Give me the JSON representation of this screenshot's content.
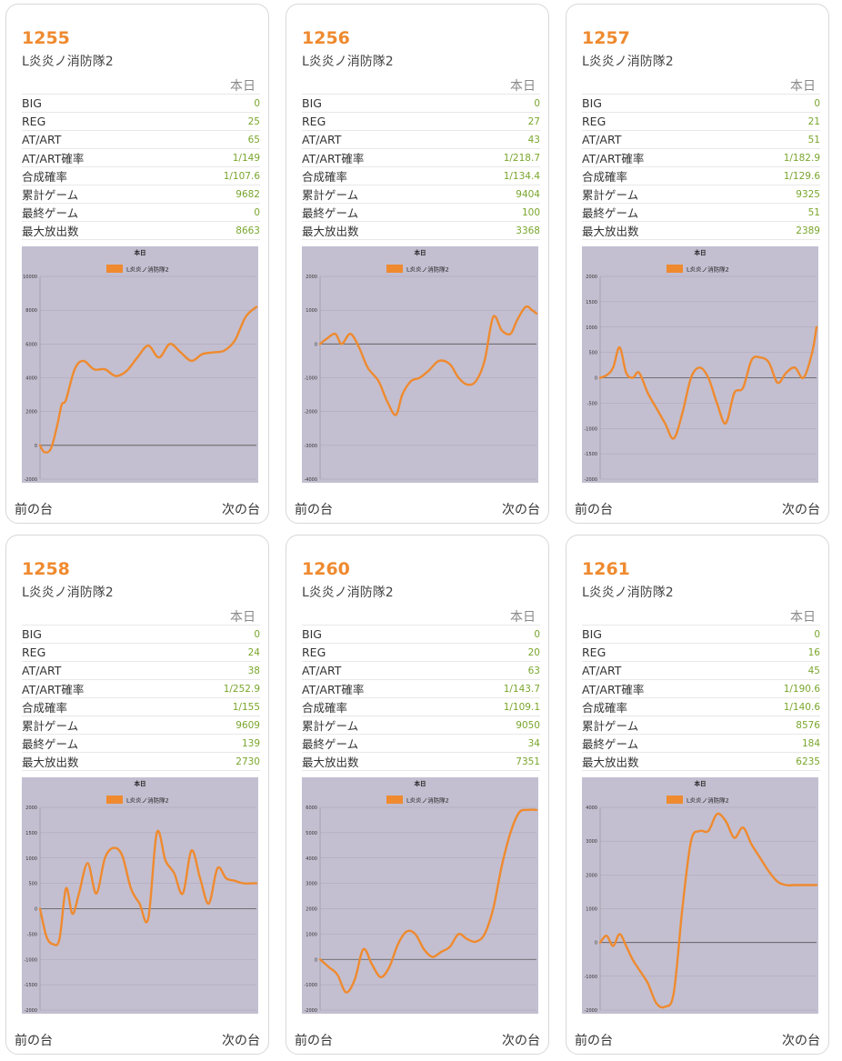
{
  "header_today": "本日",
  "nav": {
    "prev": "前の台",
    "next": "次の台"
  },
  "stat_labels": [
    "BIG",
    "REG",
    "AT/ART",
    "AT/ART確率",
    "合成確率",
    "累計ゲーム",
    "最終ゲーム",
    "最大放出数"
  ],
  "colors": {
    "accent": "#ef8a2f",
    "value_green": "#7aa62c",
    "chart_bg": "#c3bfd0",
    "line": "#ef8a2f"
  },
  "machines": [
    {
      "number": "1255",
      "model": "L炎炎ノ消防隊2",
      "stats": [
        "0",
        "25",
        "65",
        "1/149",
        "1/107.6",
        "9682",
        "0",
        "8663"
      ]
    },
    {
      "number": "1256",
      "model": "L炎炎ノ消防隊2",
      "stats": [
        "0",
        "27",
        "43",
        "1/218.7",
        "1/134.4",
        "9404",
        "100",
        "3368"
      ]
    },
    {
      "number": "1257",
      "model": "L炎炎ノ消防隊2",
      "stats": [
        "0",
        "21",
        "51",
        "1/182.9",
        "1/129.6",
        "9325",
        "51",
        "2389"
      ]
    },
    {
      "number": "1258",
      "model": "L炎炎ノ消防隊2",
      "stats": [
        "0",
        "24",
        "38",
        "1/252.9",
        "1/155",
        "9609",
        "139",
        "2730"
      ]
    },
    {
      "number": "1260",
      "model": "L炎炎ノ消防隊2",
      "stats": [
        "0",
        "20",
        "63",
        "1/143.7",
        "1/109.1",
        "9050",
        "34",
        "7351"
      ]
    },
    {
      "number": "1261",
      "model": "L炎炎ノ消防隊2",
      "stats": [
        "0",
        "16",
        "45",
        "1/190.6",
        "1/140.6",
        "8576",
        "184",
        "6235"
      ]
    }
  ],
  "chart_data": [
    {
      "type": "line",
      "title": "本日",
      "series": [
        {
          "name": "L炎炎ノ消防隊2"
        }
      ],
      "ylim": [
        -2000,
        10000
      ],
      "yticks": [
        -2000,
        0,
        2000,
        4000,
        6000,
        8000,
        10000
      ],
      "x": [
        0,
        0.02,
        0.05,
        0.08,
        0.1,
        0.12,
        0.16,
        0.2,
        0.25,
        0.3,
        0.35,
        0.4,
        0.45,
        0.5,
        0.55,
        0.6,
        0.65,
        0.7,
        0.75,
        0.8,
        0.85,
        0.9,
        0.95,
        1.0
      ],
      "y": [
        0,
        -400,
        -200,
        1200,
        2400,
        2700,
        4500,
        5000,
        4500,
        4500,
        4100,
        4400,
        5200,
        5900,
        5200,
        6000,
        5500,
        5000,
        5400,
        5500,
        5600,
        6200,
        7600,
        8200
      ]
    },
    {
      "type": "line",
      "title": "本日",
      "series": [
        {
          "name": "L炎炎ノ消防隊2"
        }
      ],
      "ylim": [
        -4000,
        2000
      ],
      "yticks": [
        -4000,
        -3000,
        -2000,
        -1000,
        0,
        1000,
        2000
      ],
      "x": [
        0,
        0.03,
        0.07,
        0.1,
        0.14,
        0.18,
        0.22,
        0.27,
        0.31,
        0.35,
        0.38,
        0.42,
        0.46,
        0.5,
        0.55,
        0.6,
        0.64,
        0.68,
        0.72,
        0.76,
        0.8,
        0.84,
        0.88,
        0.91,
        0.95,
        0.98,
        1.0
      ],
      "y": [
        0,
        150,
        300,
        0,
        300,
        -100,
        -700,
        -1100,
        -1700,
        -2100,
        -1500,
        -1100,
        -1000,
        -800,
        -500,
        -600,
        -1000,
        -1200,
        -1100,
        -500,
        800,
        400,
        300,
        700,
        1100,
        1000,
        900
      ]
    },
    {
      "type": "line",
      "title": "本日",
      "series": [
        {
          "name": "L炎炎ノ消防隊2"
        }
      ],
      "ylim": [
        -2000,
        2000
      ],
      "yticks": [
        -2000,
        -1500,
        -1000,
        -500,
        0,
        500,
        1000,
        1500,
        2000
      ],
      "x": [
        0,
        0.03,
        0.06,
        0.09,
        0.12,
        0.15,
        0.18,
        0.22,
        0.26,
        0.3,
        0.34,
        0.38,
        0.42,
        0.46,
        0.5,
        0.54,
        0.58,
        0.62,
        0.66,
        0.7,
        0.74,
        0.78,
        0.82,
        0.86,
        0.9,
        0.94,
        0.98,
        1.0
      ],
      "y": [
        0,
        50,
        200,
        600,
        100,
        0,
        100,
        -300,
        -600,
        -900,
        -1200,
        -700,
        0,
        200,
        0,
        -500,
        -900,
        -300,
        -200,
        350,
        400,
        300,
        -100,
        100,
        200,
        0,
        500,
        1000
      ]
    },
    {
      "type": "line",
      "title": "本日",
      "series": [
        {
          "name": "L炎炎ノ消防隊2"
        }
      ],
      "ylim": [
        -2000,
        2000
      ],
      "yticks": [
        -2000,
        -1500,
        -1000,
        -500,
        0,
        500,
        1000,
        1500,
        2000
      ],
      "x": [
        0,
        0.03,
        0.06,
        0.09,
        0.12,
        0.15,
        0.18,
        0.22,
        0.26,
        0.3,
        0.34,
        0.38,
        0.42,
        0.46,
        0.5,
        0.54,
        0.58,
        0.62,
        0.66,
        0.7,
        0.74,
        0.78,
        0.82,
        0.86,
        0.9,
        0.94,
        0.98,
        1.0
      ],
      "y": [
        0,
        -550,
        -700,
        -600,
        400,
        -100,
        300,
        900,
        300,
        1000,
        1200,
        1050,
        400,
        100,
        -200,
        1500,
        950,
        700,
        300,
        1150,
        600,
        100,
        800,
        600,
        550,
        500,
        500,
        500
      ]
    },
    {
      "type": "line",
      "title": "本日",
      "series": [
        {
          "name": "L炎炎ノ消防隊2"
        }
      ],
      "ylim": [
        -2000,
        6000
      ],
      "yticks": [
        -2000,
        -1000,
        0,
        1000,
        2000,
        3000,
        4000,
        5000,
        6000
      ],
      "x": [
        0,
        0.04,
        0.08,
        0.12,
        0.16,
        0.2,
        0.24,
        0.28,
        0.32,
        0.36,
        0.4,
        0.44,
        0.48,
        0.52,
        0.56,
        0.6,
        0.64,
        0.68,
        0.72,
        0.76,
        0.8,
        0.84,
        0.88,
        0.92,
        0.96,
        1.0
      ],
      "y": [
        0,
        -300,
        -600,
        -1300,
        -800,
        400,
        -200,
        -700,
        -300,
        600,
        1100,
        1000,
        400,
        100,
        300,
        500,
        1000,
        800,
        700,
        1000,
        2000,
        3700,
        5000,
        5800,
        5900,
        5900
      ]
    },
    {
      "type": "line",
      "title": "本日",
      "series": [
        {
          "name": "L炎炎ノ消防隊2"
        }
      ],
      "ylim": [
        -2000,
        4000
      ],
      "yticks": [
        -2000,
        -1000,
        0,
        1000,
        2000,
        3000,
        4000
      ],
      "x": [
        0,
        0.03,
        0.06,
        0.09,
        0.12,
        0.15,
        0.18,
        0.22,
        0.26,
        0.3,
        0.34,
        0.38,
        0.42,
        0.46,
        0.5,
        0.54,
        0.58,
        0.62,
        0.66,
        0.7,
        0.74,
        0.78,
        0.82,
        0.86,
        0.9,
        0.94,
        0.98,
        1.0
      ],
      "y": [
        0,
        200,
        -100,
        250,
        -100,
        -500,
        -800,
        -1200,
        -1800,
        -1900,
        -1500,
        1000,
        3000,
        3300,
        3300,
        3800,
        3600,
        3100,
        3400,
        2900,
        2500,
        2100,
        1800,
        1700,
        1700,
        1700,
        1700,
        1700
      ]
    }
  ]
}
